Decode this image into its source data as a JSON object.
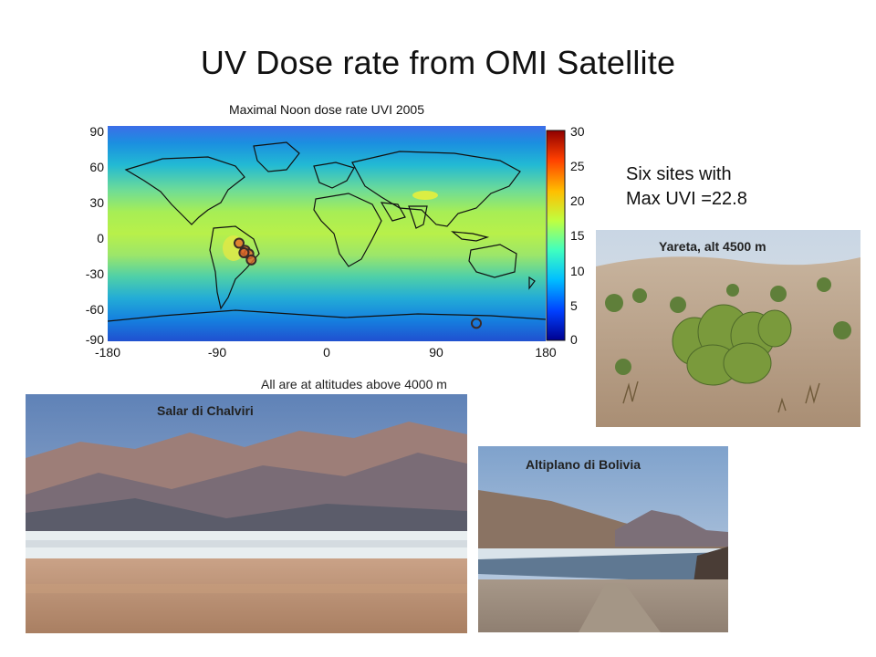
{
  "slide": {
    "title": "UV Dose rate from OMI Satellite"
  },
  "map": {
    "title": "Maximal Noon dose rate UVI 2005",
    "y_ticks": [
      "90",
      "60",
      "30",
      "0",
      "-30",
      "-60",
      "-90"
    ],
    "x_ticks": [
      "-180",
      "-90",
      "0",
      "90",
      "180"
    ],
    "colorbar_ticks": [
      "30",
      "25",
      "20",
      "15",
      "10",
      "5",
      "0"
    ],
    "colormap": [
      "#00008f",
      "#0040ff",
      "#00bfff",
      "#40ffbf",
      "#bfff40",
      "#ffbf00",
      "#ff4000",
      "#8f0000"
    ],
    "site_markers": [
      {
        "lon": -72,
        "lat": -8
      },
      {
        "lon": -67,
        "lat": -14
      },
      {
        "lon": -64,
        "lat": -17
      },
      {
        "lon": -68,
        "lat": -16
      },
      {
        "lon": -62,
        "lat": -22
      },
      {
        "lon": 123,
        "lat": -75
      }
    ]
  },
  "side_note": {
    "line1": "Six sites with",
    "line2": "Max UVI =22.8"
  },
  "altitude_note": "All are at altitudes above 4000 m",
  "photos": {
    "yareta": "Yareta, alt 4500 m",
    "salar": "Salar di Chalviri",
    "altiplano": "Altiplano di Bolivia"
  }
}
